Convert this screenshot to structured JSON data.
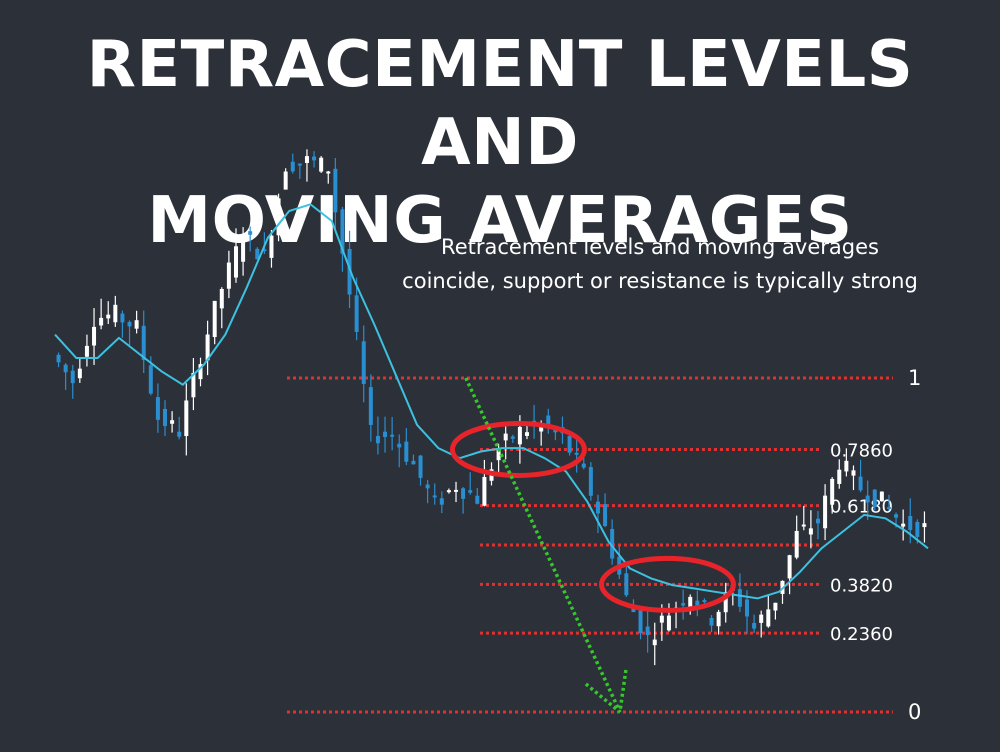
{
  "header": {
    "title_line1": "RETRACEMENT LEVELS AND",
    "title_line2": "MOVING AVERAGES"
  },
  "annotation": {
    "line1": "Retracement levels and moving averages",
    "line2": "coincide, support or resistance is typically strong"
  },
  "colors": {
    "background": "#2c3039",
    "candle_up": "#ffffff",
    "candle_down": "#2a8fd0",
    "moving_average": "#3cc2e0",
    "level_line": "#e03030",
    "highlight_ellipse": "#e8242b",
    "trend_arrow": "#35c72c"
  },
  "chart_data": {
    "type": "candlestick",
    "title": "",
    "xlabel": "",
    "ylabel": "",
    "ylim": [
      -0.05,
      1.78
    ],
    "grid": false,
    "levels": [
      {
        "value": 1,
        "label": "1"
      },
      {
        "value": 0.786,
        "label": "0.7860"
      },
      {
        "value": 0.618,
        "label": "0.6180"
      },
      {
        "value": 0.5,
        "label": ""
      },
      {
        "value": 0.382,
        "label": "0.3820"
      },
      {
        "value": 0.236,
        "label": "0.2360"
      },
      {
        "value": 0,
        "label": "0"
      }
    ],
    "series": [
      {
        "name": "",
        "kind": "close",
        "values": [
          1.07,
          0.99,
          1.18,
          1.19,
          1.15,
          0.88,
          0.84,
          1.07,
          1.27,
          1.43,
          1.36,
          1.64,
          1.65,
          1.63,
          1.25,
          0.83,
          0.83,
          0.74,
          0.62,
          0.68,
          0.64,
          0.79,
          0.84,
          0.86,
          0.82,
          0.71,
          0.55,
          0.34,
          0.22,
          0.3,
          0.36,
          0.28,
          0.37,
          0.25,
          0.34,
          0.53,
          0.57,
          0.75,
          0.67,
          0.63,
          0.56,
          0.55
        ]
      },
      {
        "name": "",
        "kind": "moving_average",
        "values": [
          1.13,
          1.06,
          1.06,
          1.12,
          1.07,
          1.02,
          0.98,
          1.04,
          1.13,
          1.27,
          1.42,
          1.5,
          1.52,
          1.47,
          1.3,
          1.16,
          1.01,
          0.86,
          0.79,
          0.76,
          0.78,
          0.79,
          0.79,
          0.76,
          0.72,
          0.63,
          0.51,
          0.43,
          0.4,
          0.38,
          0.37,
          0.36,
          0.35,
          0.34,
          0.36,
          0.42,
          0.49,
          0.54,
          0.59,
          0.58,
          0.54,
          0.49
        ]
      }
    ],
    "annotations": {
      "highlights": [
        {
          "x_index": 22,
          "value": 0.786
        },
        {
          "x_index": 29,
          "value": 0.382
        }
      ],
      "trend_arrow": {
        "from_index": 20,
        "from_value": 1.0,
        "to_index": 27,
        "to_value": 0.0
      }
    }
  }
}
